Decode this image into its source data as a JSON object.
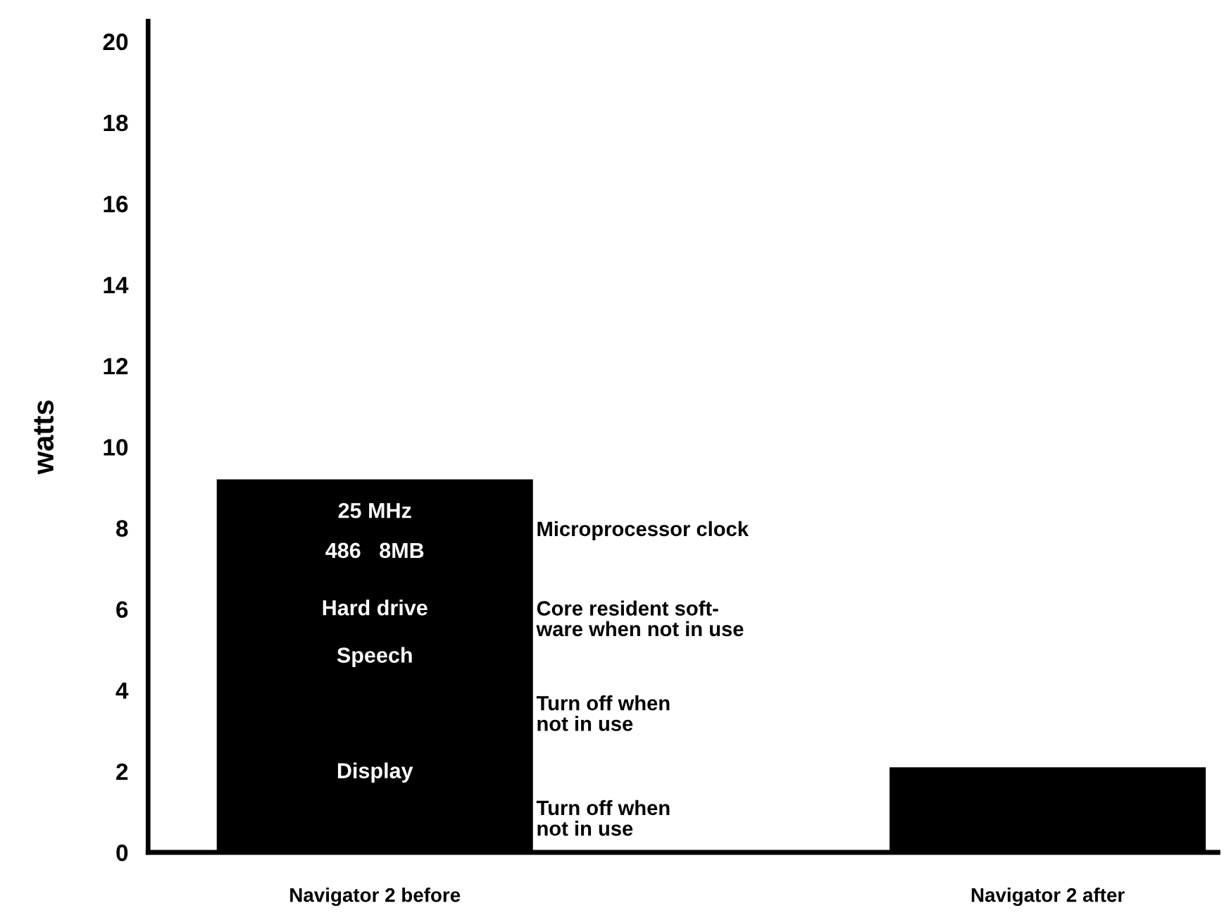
{
  "chart_data": {
    "type": "bar",
    "ylabel": "watts",
    "categories": [
      "Navigator 2 before",
      "Navigator 2 after"
    ],
    "series": [
      {
        "color": "#000000",
        "values": [
          9.2,
          2.1
        ]
      }
    ],
    "ylim": [
      0,
      20.5
    ],
    "yticks": [
      0,
      2,
      4,
      6,
      8,
      10,
      12,
      14,
      16,
      18,
      20
    ],
    "annotations": [
      "25 MHz",
      "486   8MB",
      "Hard drive",
      "Speech",
      "Display",
      "Microprocessor clock",
      "Core resident soft-\nware when not in use",
      "Turn off when\nnot in use",
      "Turn off when\nnot in use"
    ],
    "grid": false,
    "legend": false
  }
}
